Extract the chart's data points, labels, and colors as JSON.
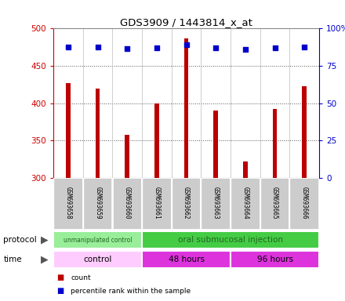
{
  "title": "GDS3909 / 1443814_x_at",
  "samples": [
    "GSM693658",
    "GSM693659",
    "GSM693660",
    "GSM693661",
    "GSM693662",
    "GSM693663",
    "GSM693664",
    "GSM693665",
    "GSM693666"
  ],
  "bar_values": [
    427,
    420,
    357,
    400,
    487,
    390,
    322,
    392,
    423
  ],
  "percentile_values": [
    475,
    475,
    473,
    474,
    478,
    474,
    472,
    474,
    475
  ],
  "ymin": 300,
  "ymax": 500,
  "yticks": [
    300,
    350,
    400,
    450,
    500
  ],
  "right_yticks": [
    0,
    25,
    50,
    75,
    100
  ],
  "bar_color": "#bb0000",
  "percentile_color": "#0000cc",
  "bar_width": 0.15,
  "protocol_groups": [
    {
      "label": "unmanipulated control",
      "start": 0,
      "end": 3,
      "color": "#99ee99"
    },
    {
      "label": "oral submucosal injection",
      "start": 3,
      "end": 9,
      "color": "#44cc44"
    }
  ],
  "time_groups": [
    {
      "label": "control",
      "start": 0,
      "end": 3,
      "color": "#ffccff"
    },
    {
      "label": "48 hours",
      "start": 3,
      "end": 6,
      "color": "#ee44ee"
    },
    {
      "label": "96 hours",
      "start": 6,
      "end": 9,
      "color": "#ee44ee"
    }
  ],
  "legend_count_color": "#bb0000",
  "legend_percentile_color": "#0000cc",
  "left_axis_color": "#cc0000",
  "right_axis_color": "#0000cc",
  "bg_color": "#ffffff",
  "label_area_bg": "#cccccc",
  "left_label": "protocol",
  "right_label": "time"
}
